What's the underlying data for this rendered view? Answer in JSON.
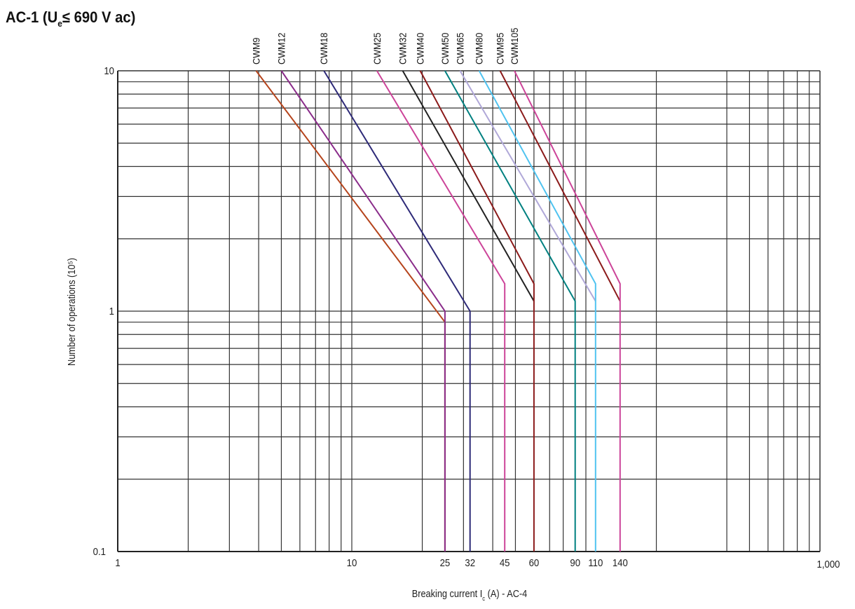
{
  "title": {
    "prefix": "AC-1 (U",
    "subscript": "e",
    "suffix": "≤ 690 V ac)"
  },
  "chart_data": {
    "type": "line",
    "xlabel": {
      "prefix": "Breaking current I",
      "subscript": "c",
      "suffix": " (A) - AC-4"
    },
    "ylabel": "Number of operations (10⁵)",
    "x_scale": "log",
    "y_scale": "log",
    "xlim": [
      1,
      1000
    ],
    "ylim": [
      0.1,
      10
    ],
    "grid": true,
    "x_ticks": [
      {
        "value": 1,
        "label": "1"
      },
      {
        "value": 10,
        "label": "10"
      },
      {
        "value": 25,
        "label": "25"
      },
      {
        "value": 32,
        "label": "32"
      },
      {
        "value": 45,
        "label": "45"
      },
      {
        "value": 60,
        "label": "60"
      },
      {
        "value": 90,
        "label": "90"
      },
      {
        "value": 110,
        "label": "110"
      },
      {
        "value": 140,
        "label": "140"
      },
      {
        "value": 1000,
        "label": "1,000"
      }
    ],
    "y_ticks": [
      {
        "value": 10,
        "label": "10"
      },
      {
        "value": 1,
        "label": "1"
      },
      {
        "value": 0.1,
        "label": "0.1"
      }
    ],
    "series": [
      {
        "name": "CWM9",
        "color": "#b5441c",
        "points": [
          [
            3.9,
            10
          ],
          [
            25,
            0.9
          ],
          [
            25,
            0.1
          ]
        ]
      },
      {
        "name": "CWM12",
        "color": "#8a2c8a",
        "points": [
          [
            5.0,
            10
          ],
          [
            25,
            1.0
          ],
          [
            25,
            0.1
          ]
        ]
      },
      {
        "name": "CWM18",
        "color": "#2e2a78",
        "points": [
          [
            7.6,
            10
          ],
          [
            32,
            1.0
          ],
          [
            32,
            0.1
          ]
        ]
      },
      {
        "name": "CWM25",
        "color": "#cc4499",
        "points": [
          [
            12.8,
            10
          ],
          [
            45,
            1.3
          ],
          [
            45,
            0.1
          ]
        ]
      },
      {
        "name": "CWM32",
        "color": "#222222",
        "points": [
          [
            16.5,
            10
          ],
          [
            60,
            1.1
          ]
        ]
      },
      {
        "name": "CWM40",
        "color": "#8b1a1a",
        "points": [
          [
            19.6,
            10
          ],
          [
            60,
            1.3
          ],
          [
            60,
            0.1
          ]
        ]
      },
      {
        "name": "CWM50",
        "color": "#008080",
        "points": [
          [
            25,
            10
          ],
          [
            90,
            1.1
          ],
          [
            90,
            0.1
          ]
        ]
      },
      {
        "name": "CWM65",
        "color": "#b0a8d8",
        "points": [
          [
            29,
            10
          ],
          [
            110,
            1.1
          ]
        ]
      },
      {
        "name": "CWM80",
        "color": "#4fc3f0",
        "points": [
          [
            35,
            10
          ],
          [
            110,
            1.3
          ],
          [
            110,
            0.1
          ]
        ]
      },
      {
        "name": "CWM95",
        "color": "#8b1a1a",
        "points": [
          [
            43,
            10
          ],
          [
            140,
            1.1
          ]
        ]
      },
      {
        "name": "CWM105",
        "color": "#cc4499",
        "points": [
          [
            49.5,
            10
          ],
          [
            140,
            1.3
          ],
          [
            140,
            0.1
          ]
        ]
      }
    ]
  }
}
